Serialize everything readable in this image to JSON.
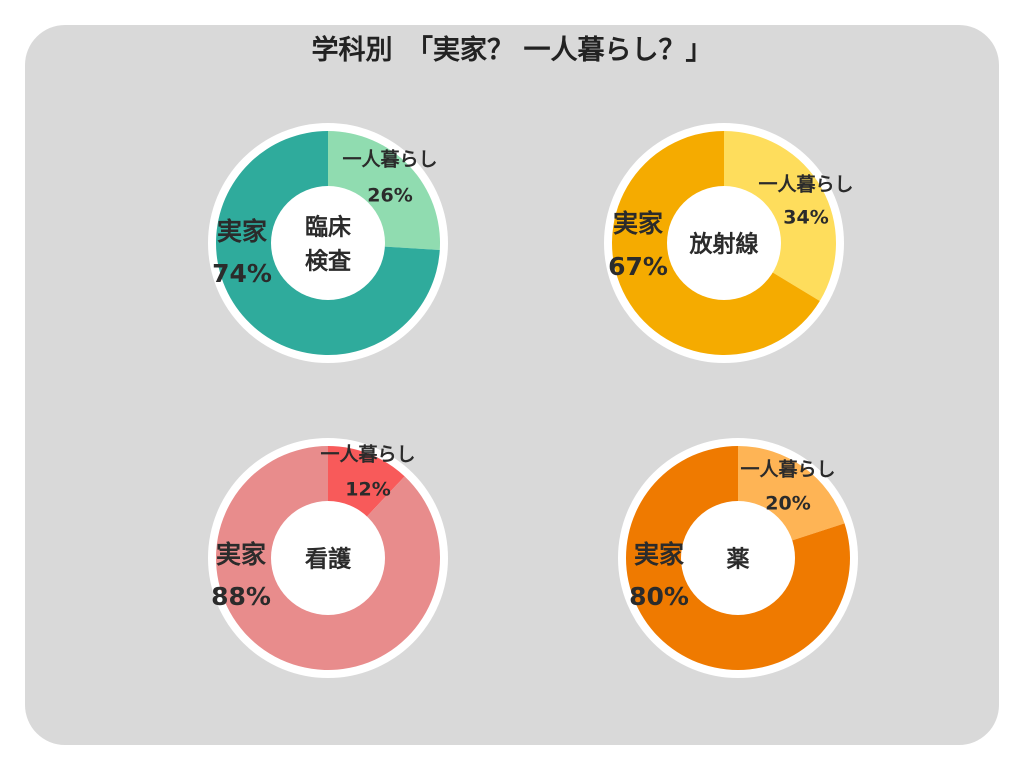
{
  "title": "学科別　「実家？ 一人暮らし？」",
  "chart_data": [
    {
      "type": "pie",
      "center_label": [
        "臨床",
        "検査"
      ],
      "categories": [
        "一人暮らし",
        "実家"
      ],
      "values": [
        26,
        74
      ],
      "labels": [
        "26%",
        "74%"
      ],
      "colors": [
        "#90dcb0",
        "#2fab9c"
      ]
    },
    {
      "type": "pie",
      "center_label": [
        "放射線"
      ],
      "categories": [
        "一人暮らし",
        "実家"
      ],
      "values": [
        34,
        67
      ],
      "labels": [
        "34%",
        "67%"
      ],
      "colors": [
        "#fedd5c",
        "#f5ab00"
      ]
    },
    {
      "type": "pie",
      "center_label": [
        "看護"
      ],
      "categories": [
        "一人暮らし",
        "実家"
      ],
      "values": [
        12,
        88
      ],
      "labels": [
        "12%",
        "88%"
      ],
      "colors": [
        "#f85a5a",
        "#e88c8c"
      ]
    },
    {
      "type": "pie",
      "center_label": [
        "薬"
      ],
      "categories": [
        "一人暮らし",
        "実家"
      ],
      "values": [
        20,
        80
      ],
      "labels": [
        "20%",
        "80%"
      ],
      "colors": [
        "#feb455",
        "#ef7a00"
      ]
    }
  ]
}
